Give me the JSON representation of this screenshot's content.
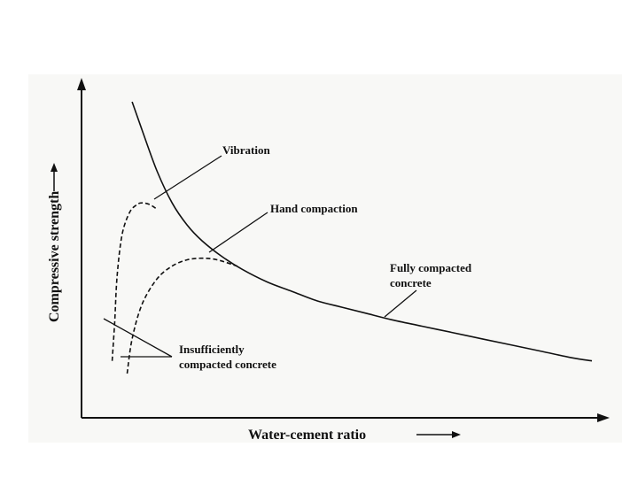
{
  "chart_data": {
    "type": "line",
    "title": "",
    "xlabel": "Water-cement ratio",
    "ylabel": "Compressive strength",
    "x_ticks": "none",
    "y_ticks": "none",
    "axis_arrows": true,
    "grid": false,
    "legend": "none",
    "series": [
      {
        "label": "Fully compacted concrete",
        "style": "solid",
        "points": [
          [
            0.08,
            1.0
          ],
          [
            0.1,
            0.91
          ],
          [
            0.13,
            0.78
          ],
          [
            0.16,
            0.68
          ],
          [
            0.19,
            0.61
          ],
          [
            0.22,
            0.56
          ],
          [
            0.26,
            0.51
          ],
          [
            0.3,
            0.47
          ],
          [
            0.35,
            0.43
          ],
          [
            0.4,
            0.4
          ],
          [
            0.45,
            0.37
          ],
          [
            0.5,
            0.35
          ],
          [
            0.55,
            0.33
          ],
          [
            0.6,
            0.31
          ],
          [
            0.66,
            0.29
          ],
          [
            0.72,
            0.27
          ],
          [
            0.78,
            0.25
          ],
          [
            0.84,
            0.23
          ],
          [
            0.9,
            0.21
          ],
          [
            0.96,
            0.19
          ],
          [
            1.0,
            0.18
          ]
        ]
      },
      {
        "label": "Vibration",
        "style": "dashed",
        "points": [
          [
            0.04,
            0.18
          ],
          [
            0.045,
            0.3
          ],
          [
            0.05,
            0.45
          ],
          [
            0.06,
            0.58
          ],
          [
            0.075,
            0.65
          ],
          [
            0.09,
            0.675
          ],
          [
            0.1,
            0.68
          ],
          [
            0.115,
            0.675
          ],
          [
            0.13,
            0.66
          ]
        ]
      },
      {
        "label": "Hand compaction",
        "style": "dashed",
        "points": [
          [
            0.07,
            0.14
          ],
          [
            0.08,
            0.25
          ],
          [
            0.1,
            0.36
          ],
          [
            0.13,
            0.44
          ],
          [
            0.16,
            0.48
          ],
          [
            0.19,
            0.5
          ],
          [
            0.22,
            0.505
          ],
          [
            0.25,
            0.5
          ],
          [
            0.29,
            0.48
          ]
        ]
      }
    ],
    "annotations": [
      {
        "id": "vibration",
        "text": "Vibration"
      },
      {
        "id": "hand",
        "text": "Hand compaction"
      },
      {
        "id": "fully_1",
        "text": "Fully compacted"
      },
      {
        "id": "fully_2",
        "text": "concrete"
      },
      {
        "id": "insuff_1",
        "text": "Insufficiently"
      },
      {
        "id": "insuff_2",
        "text": "compacted concrete"
      }
    ]
  }
}
